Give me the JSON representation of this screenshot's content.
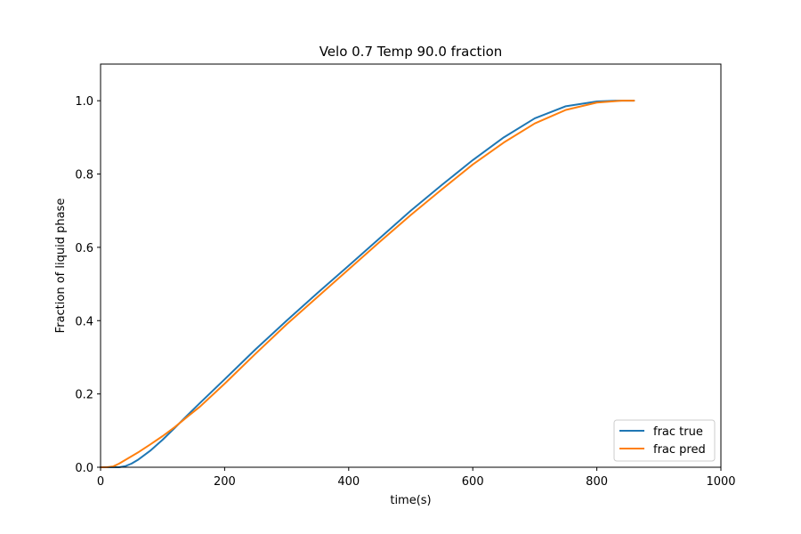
{
  "chart_data": {
    "type": "line",
    "title": "Velo 0.7 Temp 90.0 fraction",
    "xlabel": "time(s)",
    "ylabel": "Fraction of liquid phase",
    "xlim": [
      0,
      1000
    ],
    "ylim": [
      0,
      1.1
    ],
    "xticks": [
      0,
      200,
      400,
      600,
      800,
      1000
    ],
    "yticks": [
      0.0,
      0.2,
      0.4,
      0.6,
      0.8,
      1.0
    ],
    "xtick_labels": [
      "0",
      "200",
      "400",
      "600",
      "800",
      "1000"
    ],
    "ytick_labels": [
      "0.0",
      "0.2",
      "0.4",
      "0.6",
      "0.8",
      "1.0"
    ],
    "grid": false,
    "legend_position": "bottom-right",
    "series": [
      {
        "name": "frac true",
        "color": "#1f77b4",
        "x": [
          0,
          20,
          30,
          40,
          50,
          60,
          80,
          100,
          120,
          140,
          160,
          200,
          250,
          300,
          350,
          400,
          450,
          500,
          550,
          600,
          650,
          700,
          750,
          800,
          830,
          850,
          860
        ],
        "y": [
          0.0,
          0.0,
          0.0,
          0.003,
          0.01,
          0.02,
          0.045,
          0.075,
          0.108,
          0.142,
          0.175,
          0.24,
          0.322,
          0.4,
          0.476,
          0.55,
          0.625,
          0.7,
          0.77,
          0.838,
          0.9,
          0.952,
          0.985,
          0.998,
          1.0,
          1.0,
          1.0
        ]
      },
      {
        "name": "frac pred",
        "color": "#ff7f0e",
        "x": [
          0,
          10,
          20,
          30,
          40,
          60,
          80,
          100,
          120,
          140,
          160,
          200,
          250,
          300,
          350,
          400,
          450,
          500,
          550,
          600,
          650,
          700,
          750,
          800,
          840,
          860
        ],
        "y": [
          0.0,
          0.0,
          0.002,
          0.01,
          0.02,
          0.04,
          0.062,
          0.085,
          0.11,
          0.138,
          0.165,
          0.228,
          0.31,
          0.39,
          0.465,
          0.54,
          0.615,
          0.688,
          0.758,
          0.826,
          0.886,
          0.938,
          0.975,
          0.995,
          1.0,
          1.0
        ]
      }
    ]
  }
}
